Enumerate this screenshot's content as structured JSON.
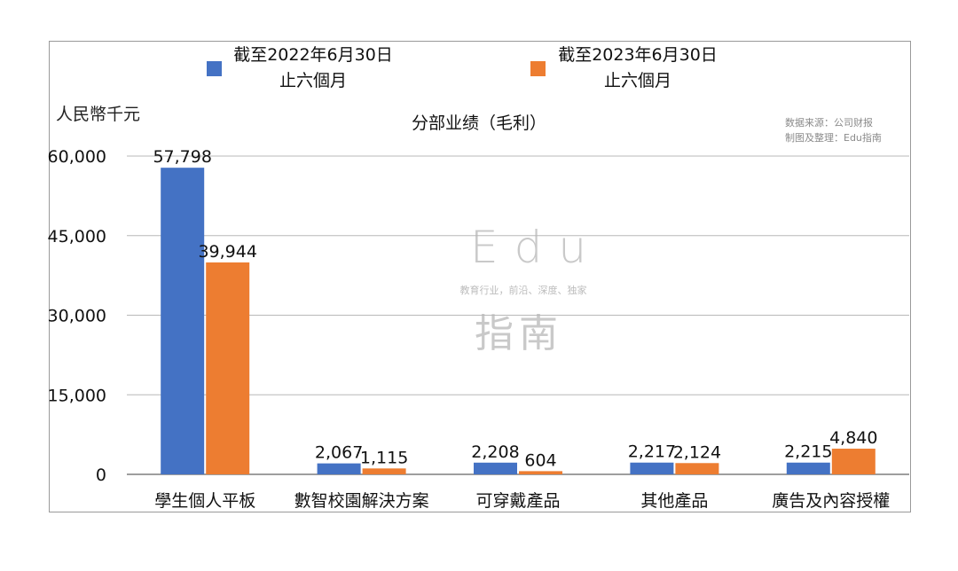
{
  "legend": [
    {
      "line1": "截至2022年6月30日",
      "line2": "止六個月",
      "color": "#4472c4"
    },
    {
      "line1": "截至2023年6月30日",
      "line2": "止六個月",
      "color": "#ed7d31"
    }
  ],
  "unit_label": "人民幣千元",
  "title": "分部业绩（毛利）",
  "source_note": {
    "line1": "数据来源：公司财报",
    "line2": "制图及整理：Edu指南"
  },
  "watermark": {
    "top": "Edu",
    "middle": "教育行业，前沿、深度、独家",
    "bottom": "指南"
  },
  "chart_data": {
    "type": "bar",
    "title": "分部业绩（毛利）",
    "ylabel": "人民幣千元",
    "xlabel": "",
    "categories": [
      "學生個人平板",
      "數智校園解決方案",
      "可穿戴產品",
      "其他產品",
      "廣告及內容授權"
    ],
    "series": [
      {
        "name": "截至2022年6月30日止六個月",
        "values": [
          57798,
          2067,
          2208,
          2217,
          2215
        ],
        "color": "#4472c4"
      },
      {
        "name": "截至2023年6月30日止六個月",
        "values": [
          39944,
          1115,
          604,
          2124,
          4840
        ],
        "color": "#ed7d31"
      }
    ],
    "data_labels": [
      [
        "57,798",
        "2,067",
        "2,208",
        "2,217",
        "2,215"
      ],
      [
        "39,944",
        "1,115",
        "604",
        "2,124",
        "4,840"
      ]
    ],
    "yticks": [
      0,
      15000,
      30000,
      45000,
      60000
    ],
    "ytick_labels": [
      "0",
      "15,000",
      "30,000",
      "45,000",
      "60,000"
    ],
    "ylim": [
      0,
      60000
    ],
    "grid": true,
    "legend_position": "top"
  }
}
